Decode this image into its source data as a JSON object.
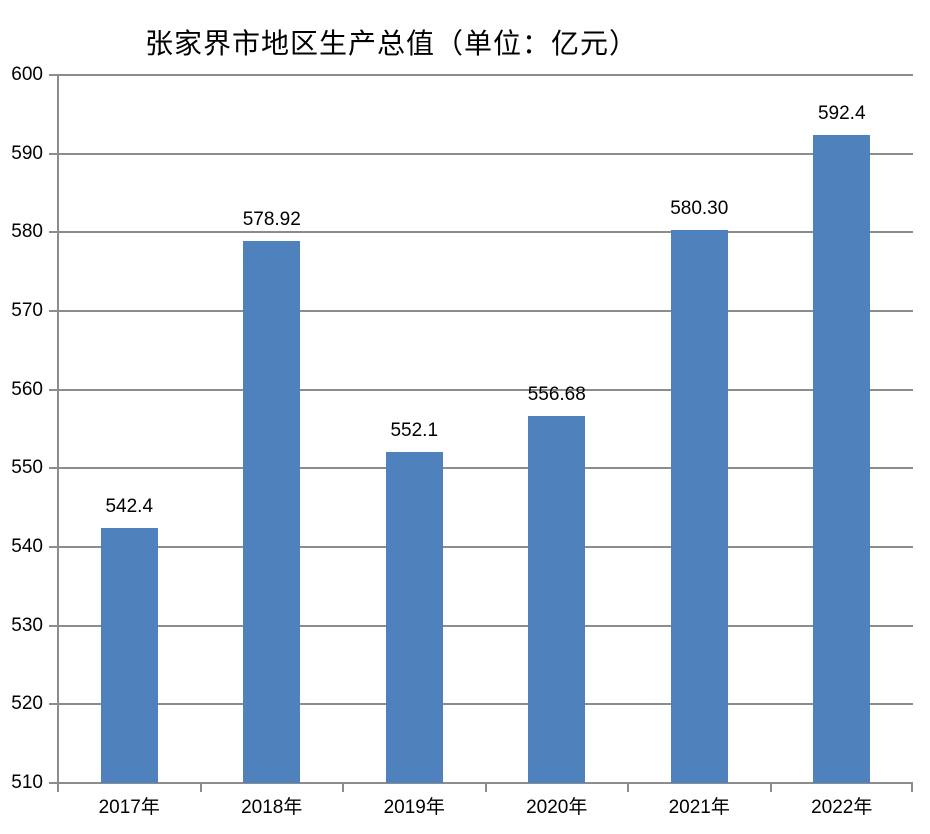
{
  "chart_data": {
    "type": "bar",
    "title": "张家界市地区生产总值（单位：亿元）",
    "categories": [
      "2017年",
      "2018年",
      "2019年",
      "2020年",
      "2021年",
      "2022年"
    ],
    "values": [
      542.4,
      578.92,
      552.1,
      556.68,
      580.3,
      592.4
    ],
    "value_labels": [
      "542.4",
      "578.92",
      "552.1",
      "556.68",
      "580.30",
      "592.4"
    ],
    "xlabel": "",
    "ylabel": "",
    "ylim": [
      510,
      600
    ],
    "ytick_step": 10,
    "yticks": [
      510,
      520,
      530,
      540,
      550,
      560,
      570,
      580,
      590,
      600
    ],
    "grid": "horizontal",
    "legend_position": "none",
    "bar_color": "#4F81BD",
    "grid_color": "#8C8C8C",
    "axis_color": "#8C8C8C",
    "text_color": "#000000"
  }
}
